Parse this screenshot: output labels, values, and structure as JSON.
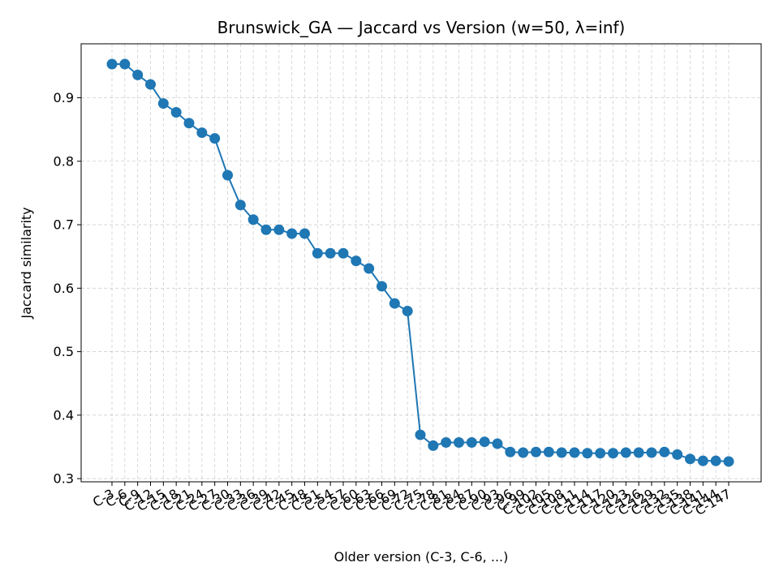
{
  "chart_data": {
    "type": "line",
    "title": "Brunswick_GA — Jaccard vs Version (w=50, λ=inf)",
    "xlabel": "Older version (C-3, C-6, ...)",
    "ylabel": "Jaccard similarity",
    "ylim": [
      0.295,
      0.985
    ],
    "yticks": [
      0.3,
      0.4,
      0.5,
      0.6,
      0.7,
      0.8,
      0.9
    ],
    "ytick_labels": [
      "0.3",
      "0.4",
      "0.5",
      "0.6",
      "0.7",
      "0.8",
      "0.9"
    ],
    "grid": true,
    "color": "#1f77b4",
    "categories": [
      "C-3",
      "C-6",
      "C-9",
      "C-12",
      "C-15",
      "C-18",
      "C-21",
      "C-24",
      "C-27",
      "C-30",
      "C-33",
      "C-36",
      "C-39",
      "C-42",
      "C-45",
      "C-48",
      "C-51",
      "C-54",
      "C-57",
      "C-60",
      "C-63",
      "C-66",
      "C-69",
      "C-72",
      "C-75",
      "C-78",
      "C-81",
      "C-84",
      "C-87",
      "C-90",
      "C-93",
      "C-96",
      "C-99",
      "C-102",
      "C-105",
      "C-108",
      "C-111",
      "C-114",
      "C-117",
      "C-120",
      "C-123",
      "C-126",
      "C-129",
      "C-132",
      "C-135",
      "C-138",
      "C-141",
      "C-144",
      "C-147"
    ],
    "values": [
      0.953,
      0.953,
      0.936,
      0.921,
      0.891,
      0.877,
      0.86,
      0.845,
      0.836,
      0.778,
      0.731,
      0.708,
      0.692,
      0.692,
      0.686,
      0.686,
      0.655,
      0.655,
      0.655,
      0.643,
      0.631,
      0.603,
      0.576,
      0.564,
      0.369,
      0.352,
      0.357,
      0.357,
      0.357,
      0.358,
      0.355,
      0.342,
      0.341,
      0.342,
      0.342,
      0.341,
      0.341,
      0.34,
      0.34,
      0.34,
      0.341,
      0.341,
      0.341,
      0.342,
      0.338,
      0.331,
      0.328,
      0.328,
      0.327
    ]
  }
}
